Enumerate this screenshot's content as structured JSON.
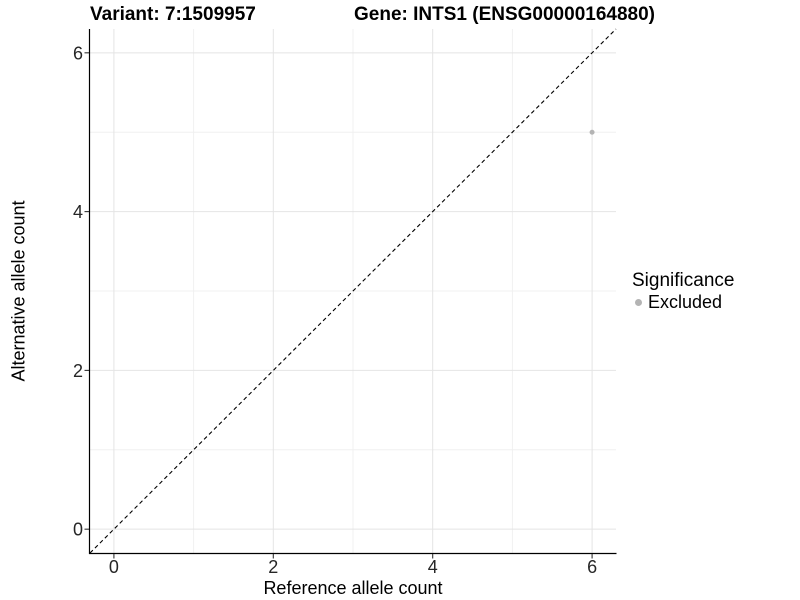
{
  "chart_data": {
    "type": "scatter",
    "titles": {
      "variant": "Variant: 7:1509957",
      "gene": "Gene: INTS1 (ENSG00000164880)"
    },
    "xlabel": "Reference allele count",
    "ylabel": "Alternative allele count",
    "xlim": [
      -0.3,
      6.3
    ],
    "ylim": [
      -0.3,
      6.3
    ],
    "x_ticks": {
      "major": [
        0,
        2,
        4,
        6
      ],
      "minor": [
        1,
        3,
        5
      ]
    },
    "y_ticks": {
      "major": [
        0,
        2,
        4,
        6
      ],
      "minor": [
        1,
        3,
        5
      ]
    },
    "grid": true,
    "reference_line": {
      "type": "identity",
      "x1": -0.3,
      "y1": -0.3,
      "x2": 6.3,
      "y2": 6.3,
      "style": "dashed",
      "color": "#000000"
    },
    "series": [
      {
        "name": "Excluded",
        "color": "#b4b4b4",
        "points": [
          {
            "x": 6,
            "y": 5
          }
        ]
      }
    ],
    "legend": {
      "title": "Significance",
      "position": "right",
      "entries": [
        {
          "label": "Excluded",
          "color": "#b4b4b4",
          "marker": "circle"
        }
      ]
    },
    "style": {
      "background": "#ffffff",
      "grid_major_color": "#e4e4e4",
      "grid_minor_color": "#f0f0f0",
      "axis_line_color": "#000000",
      "tick_color": "#333333",
      "point_radius": 2.5
    }
  }
}
